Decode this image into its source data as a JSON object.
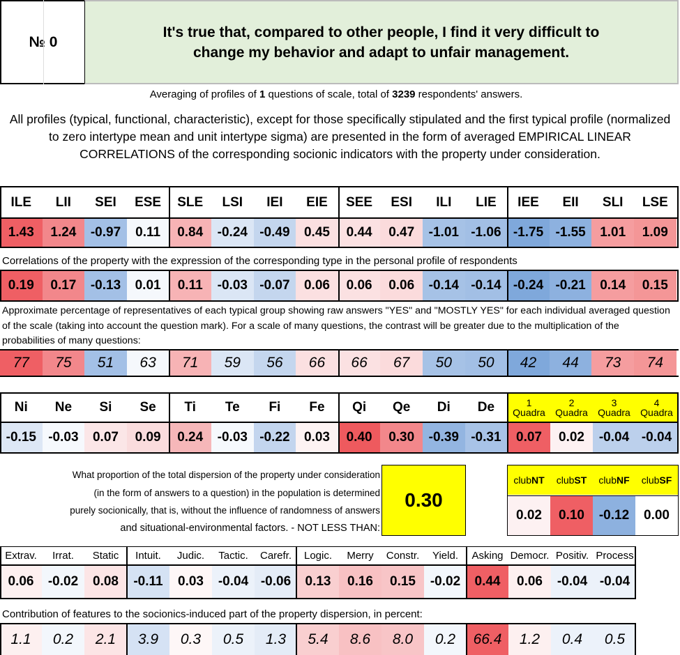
{
  "header": {
    "number_label": "№",
    "number_value": "0",
    "question": "It's true that, compared to other people, I find it very difficult to change my behavior and adapt to unfair management."
  },
  "summary": {
    "text_before": "Averaging of profiles of ",
    "questions_count": "1",
    "text_middle": " questions of scale, total of ",
    "respondents_count": "3239",
    "text_after": " respondents' answers."
  },
  "explanation": "All profiles (typical, functional, characteristic), except for those specifically stipulated and the first typical profile (normalized to zero intertype mean and unit intertype sigma) are presented in the form of averaged EMPIRICAL LINEAR CORRELATIONS of the corresponding socionic indicators with the property under consideration.",
  "types": {
    "labels": [
      "ILE",
      "LII",
      "SEI",
      "ESE",
      "SLE",
      "LSI",
      "IEI",
      "EIE",
      "SEE",
      "ESI",
      "ILI",
      "LIE",
      "IEE",
      "EII",
      "SLI",
      "LSE"
    ],
    "normalized": [
      "1.43",
      "1.24",
      "-0.97",
      "0.11",
      "0.84",
      "-0.24",
      "-0.49",
      "0.45",
      "0.44",
      "0.47",
      "-1.01",
      "-1.06",
      "-1.75",
      "-1.55",
      "1.01",
      "1.09"
    ],
    "normalized_colors": [
      "#ef5f64",
      "#f2878b",
      "#a3c0e6",
      "#f5f8fc",
      "#f7b3b5",
      "#dbe6f5",
      "#c4d6ee",
      "#fbe0e1",
      "#fbe1e2",
      "#fbdbdc",
      "#a6c2e6",
      "#a2bfe5",
      "#7fa8db",
      "#8db1df",
      "#f59d9f",
      "#f49697"
    ],
    "correlation_note": "Correlations of the property with the expression of the corresponding type in the personal profile of respondents",
    "correlations": [
      "0.19",
      "0.17",
      "-0.13",
      "0.01",
      "0.11",
      "-0.03",
      "-0.07",
      "0.06",
      "0.06",
      "0.06",
      "-0.14",
      "-0.14",
      "-0.24",
      "-0.21",
      "0.14",
      "0.15"
    ],
    "correlation_colors": [
      "#ef5f64",
      "#f2878b",
      "#a3c0e6",
      "#f5f8fc",
      "#f7b3b5",
      "#dbe6f5",
      "#c4d6ee",
      "#fbe0e1",
      "#fbe1e2",
      "#fbdbdc",
      "#a6c2e6",
      "#a2bfe5",
      "#7fa8db",
      "#8db1df",
      "#f59d9f",
      "#f49697"
    ],
    "percent_note": "Approximate percentage of representatives of each typical group showing raw answers \"YES\" and \"MOSTLY YES\" for each individual averaged question of the scale (taking into account the question mark). For a scale of many questions, the contrast will be greater due to the multiplication of the probabilities of many questions:",
    "percentages": [
      "77",
      "75",
      "51",
      "63",
      "71",
      "59",
      "56",
      "66",
      "66",
      "67",
      "50",
      "50",
      "42",
      "44",
      "73",
      "74"
    ],
    "percentage_colors": [
      "#ef5f64",
      "#f2878b",
      "#a3c0e6",
      "#f5f8fc",
      "#f7b3b5",
      "#dbe6f5",
      "#c4d6ee",
      "#fbe0e1",
      "#fbe1e2",
      "#fbdbdc",
      "#a6c2e6",
      "#a2bfe5",
      "#7fa8db",
      "#8db1df",
      "#f59d9f",
      "#f49697"
    ]
  },
  "functions": {
    "labels": [
      "Ni",
      "Ne",
      "Si",
      "Se",
      "Ti",
      "Te",
      "Fi",
      "Fe",
      "Qi",
      "Qe",
      "Di",
      "De"
    ],
    "values": [
      "-0.15",
      "-0.03",
      "0.07",
      "0.09",
      "0.24",
      "-0.03",
      "-0.22",
      "0.03",
      "0.40",
      "0.30",
      "-0.39",
      "-0.31"
    ],
    "colors": [
      "#dde7f5",
      "#f6f9fd",
      "#fbe6e7",
      "#fadcdd",
      "#f6b7b9",
      "#f6f9fd",
      "#c3d5ee",
      "#fdf3f3",
      "#ee5a5e",
      "#f2878b",
      "#93b5e1",
      "#a8c3e7"
    ]
  },
  "quadras": {
    "labels": [
      {
        "num": "1",
        "word": "Quadra"
      },
      {
        "num": "2",
        "word": "Quadra"
      },
      {
        "num": "3",
        "word": "Quadra"
      },
      {
        "num": "4",
        "word": "Quadra"
      }
    ],
    "values": [
      "0.07",
      "0.02",
      "-0.04",
      "-0.04"
    ],
    "colors": [
      "#ef5f64",
      "#fdf1f2",
      "#bcd0ec",
      "#bcd0ec"
    ],
    "header_color": "#ffff00"
  },
  "dispersion": {
    "text_lines": [
      "What proportion of the total dispersion of the property under consideration",
      "(in the form of answers to a question) in the population is determined",
      "purely socionically, that is, without the influence of randomness of answers",
      "and situational-environmental factors. - NOT LESS THAN:"
    ],
    "value": "0.30",
    "highlight_color": "#ffff00"
  },
  "clubs": {
    "labels": [
      {
        "pre": "club",
        "abbr": "NT"
      },
      {
        "pre": "club",
        "abbr": "ST"
      },
      {
        "pre": "club",
        "abbr": "NF"
      },
      {
        "pre": "club",
        "abbr": "SF"
      }
    ],
    "values": [
      "0.02",
      "0.10",
      "-0.12",
      "0.00"
    ],
    "colors": [
      "#fdf1f2",
      "#ef5f64",
      "#8db1df",
      "#ffffff"
    ]
  },
  "reinin": {
    "labels": [
      "Extrav.",
      "Irrat.",
      "Static",
      "Intuit.",
      "Judic.",
      "Tactic.",
      "Carefr.",
      "Logic.",
      "Merry",
      "Constr.",
      "Yield.",
      "Asking",
      "Democr.",
      "Positiv.",
      "Process"
    ],
    "values": [
      "0.06",
      "-0.02",
      "0.08",
      "-0.11",
      "0.03",
      "-0.04",
      "-0.06",
      "0.13",
      "0.16",
      "0.15",
      "-0.02",
      "0.44",
      "0.06",
      "-0.04",
      "-0.04"
    ],
    "colors": [
      "#fdf0f0",
      "#f3f7fc",
      "#fce5e6",
      "#d5e2f4",
      "#fef7f7",
      "#ecf2fa",
      "#e4ecf7",
      "#f9cfd0",
      "#f8c1c3",
      "#f8c5c7",
      "#f3f7fc",
      "#ef5f64",
      "#fdf0f0",
      "#ecf2fa",
      "#ecf2fa"
    ],
    "contribution_note": "Contribution of features to the socionics-induced part of the property dispersion, in percent:",
    "contributions": [
      "1.1",
      "0.2",
      "2.1",
      "3.9",
      "0.3",
      "0.5",
      "1.3",
      "5.4",
      "8.6",
      "8.0",
      "0.2",
      "66.4",
      "1.2",
      "0.4",
      "0.5"
    ],
    "contribution_colors": [
      "#fdf0f0",
      "#f3f7fc",
      "#fce5e6",
      "#d5e2f4",
      "#fef7f7",
      "#ecf2fa",
      "#e4ecf7",
      "#f9cfd0",
      "#f8c1c3",
      "#f8c5c7",
      "#f3f7fc",
      "#ef5f64",
      "#fdf0f0",
      "#ecf2fa",
      "#ecf2fa"
    ]
  },
  "colors": {
    "header_green": "#e2efda"
  }
}
